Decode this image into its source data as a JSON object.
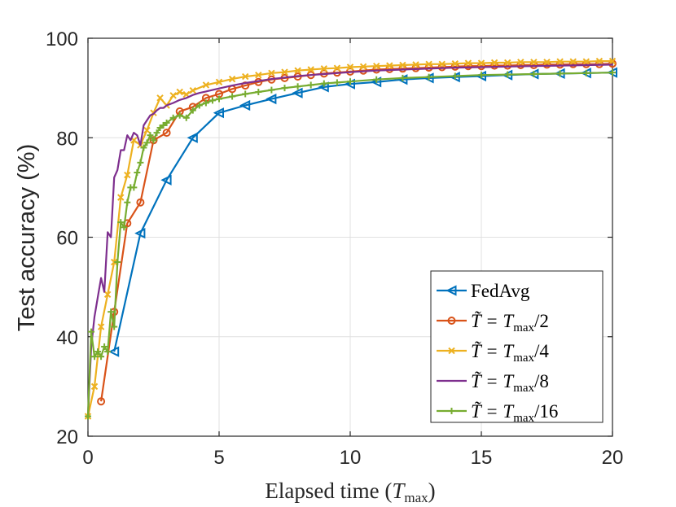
{
  "chart_data": {
    "type": "line",
    "xlabel_prefix": "Elapsed time (",
    "xlabel_T": "T",
    "xlabel_sub": "max",
    "xlabel_suffix": ")",
    "ylabel": "Test accuracy (%)",
    "xlim": [
      0,
      20
    ],
    "ylim": [
      20,
      100
    ],
    "xticks": [
      0,
      5,
      10,
      15,
      20
    ],
    "yticks": [
      20,
      40,
      60,
      80,
      100
    ],
    "grid": true,
    "legend_position": "bottom-right",
    "series": [
      {
        "name": "FedAvg",
        "label_main": "FedAvg",
        "label_den": "",
        "color": "#0072BD",
        "marker": "triangle-left",
        "x": [
          1,
          2,
          3,
          4,
          5,
          6,
          7,
          8,
          9,
          10,
          11,
          12,
          13,
          14,
          15,
          16,
          17,
          18,
          19,
          20
        ],
        "y": [
          37,
          60.8,
          71.5,
          80,
          85,
          86.5,
          87.8,
          89,
          90.2,
          90.8,
          91.2,
          91.7,
          92,
          92.2,
          92.4,
          92.6,
          92.8,
          92.9,
          93,
          93.1
        ]
      },
      {
        "name": "T̃ = T_max/2",
        "label_main": "T̃ = T",
        "label_den": "/2",
        "color": "#D95319",
        "marker": "circle",
        "x": [
          0.5,
          1,
          1.5,
          2,
          2.5,
          3,
          3.5,
          4,
          4.5,
          5,
          5.5,
          6,
          6.5,
          7,
          7.5,
          8,
          8.5,
          9,
          9.5,
          10,
          10.5,
          11,
          11.5,
          12,
          12.5,
          13,
          13.5,
          14,
          14.5,
          15,
          15.5,
          16,
          16.5,
          17,
          17.5,
          18,
          18.5,
          19,
          19.5,
          20
        ],
        "y": [
          27,
          45,
          62.8,
          67,
          79.5,
          81,
          85.3,
          86.2,
          88,
          88.8,
          89.8,
          90.5,
          91.2,
          91.7,
          92,
          92.3,
          92.6,
          92.9,
          93.1,
          93.3,
          93.5,
          93.7,
          93.8,
          93.9,
          94,
          94.1,
          94.2,
          94.3,
          94.4,
          94.4,
          94.5,
          94.5,
          94.6,
          94.6,
          94.7,
          94.7,
          94.8,
          94.8,
          94.8,
          94.9
        ]
      },
      {
        "name": "T̃ = T_max/4",
        "label_main": "T̃ = T",
        "label_den": "/4",
        "color": "#EDB120",
        "marker": "x",
        "x": [
          0,
          0.25,
          0.5,
          0.75,
          1,
          1.25,
          1.5,
          1.75,
          2,
          2.25,
          2.5,
          2.75,
          3,
          3.25,
          3.5,
          3.75,
          4,
          4.5,
          5,
          5.5,
          6,
          6.5,
          7,
          7.5,
          8,
          8.5,
          9,
          9.5,
          10,
          10.5,
          11,
          11.5,
          12,
          12.5,
          13,
          13.5,
          14,
          14.5,
          15,
          15.5,
          16,
          16.5,
          17,
          17.5,
          18,
          18.5,
          19,
          19.5,
          20
        ],
        "y": [
          24,
          30,
          42,
          48.5,
          55,
          68,
          72.5,
          79.5,
          78.5,
          81.5,
          85,
          88,
          86.5,
          88.5,
          89.2,
          88.7,
          89.5,
          90.6,
          91.2,
          91.8,
          92.3,
          92.6,
          93,
          93.2,
          93.5,
          93.7,
          93.9,
          94,
          94.2,
          94.3,
          94.4,
          94.5,
          94.6,
          94.7,
          94.8,
          94.8,
          94.9,
          95,
          95,
          95.1,
          95.1,
          95.2,
          95.2,
          95.2,
          95.3,
          95.3,
          95.3,
          95.4,
          95.4
        ]
      },
      {
        "name": "T̃ = T_max/8",
        "label_main": "T̃ = T",
        "label_den": "/8",
        "color": "#7E2F8E",
        "marker": "none",
        "x": [
          0,
          0.125,
          0.25,
          0.375,
          0.5,
          0.625,
          0.75,
          0.875,
          1,
          1.125,
          1.25,
          1.375,
          1.5,
          1.625,
          1.75,
          1.875,
          2,
          2.125,
          2.25,
          2.375,
          2.5,
          2.625,
          2.75,
          2.875,
          3,
          3.25,
          3.5,
          3.75,
          4,
          4.25,
          4.5,
          4.75,
          5,
          5.5,
          6,
          6.5,
          7,
          7.5,
          8,
          8.5,
          9,
          9.5,
          10,
          11,
          12,
          13,
          14,
          15,
          16,
          17,
          18,
          19,
          20
        ],
        "y": [
          24,
          38,
          44,
          48,
          51.8,
          49,
          61,
          60,
          72,
          73.5,
          77.5,
          77.5,
          80.5,
          79.5,
          81,
          80.5,
          78.5,
          82.5,
          83.5,
          84.5,
          84.8,
          85.5,
          86,
          86,
          86.5,
          87,
          87.6,
          88,
          88.6,
          89,
          89.3,
          89.6,
          89.9,
          90.5,
          91,
          91.4,
          91.8,
          92.1,
          92.4,
          92.6,
          92.8,
          93,
          93.2,
          93.5,
          93.7,
          93.9,
          94.1,
          94.2,
          94.3,
          94.4,
          94.5,
          94.6,
          94.7
        ]
      },
      {
        "name": "T̃ = T_max/16",
        "label_main": "T̃ = T",
        "label_den": "/16",
        "color": "#77AC30",
        "marker": "plus",
        "x": [
          0,
          0.125,
          0.25,
          0.375,
          0.5,
          0.625,
          0.75,
          0.875,
          1,
          1.125,
          1.25,
          1.375,
          1.5,
          1.625,
          1.75,
          1.875,
          2,
          2.125,
          2.25,
          2.375,
          2.5,
          2.625,
          2.75,
          2.875,
          3,
          3.25,
          3.5,
          3.75,
          4,
          4.25,
          4.5,
          4.75,
          5,
          5.5,
          6,
          6.5,
          7,
          7.5,
          8,
          8.5,
          9,
          9.5,
          10,
          11,
          12,
          13,
          14,
          15,
          16,
          17,
          18,
          19,
          20
        ],
        "y": [
          24,
          41,
          36,
          37,
          36,
          38,
          37,
          45,
          42,
          55,
          63,
          62,
          67,
          70,
          70,
          73,
          75,
          78,
          79,
          80.5,
          79.5,
          81,
          82,
          82.5,
          83,
          84,
          84.5,
          84,
          85.5,
          86.5,
          87,
          87.5,
          87.8,
          88.3,
          88.8,
          89.2,
          89.6,
          90,
          90.3,
          90.6,
          90.9,
          91.1,
          91.3,
          91.7,
          92,
          92.2,
          92.4,
          92.6,
          92.7,
          92.8,
          92.9,
          93,
          93.1
        ]
      }
    ]
  }
}
